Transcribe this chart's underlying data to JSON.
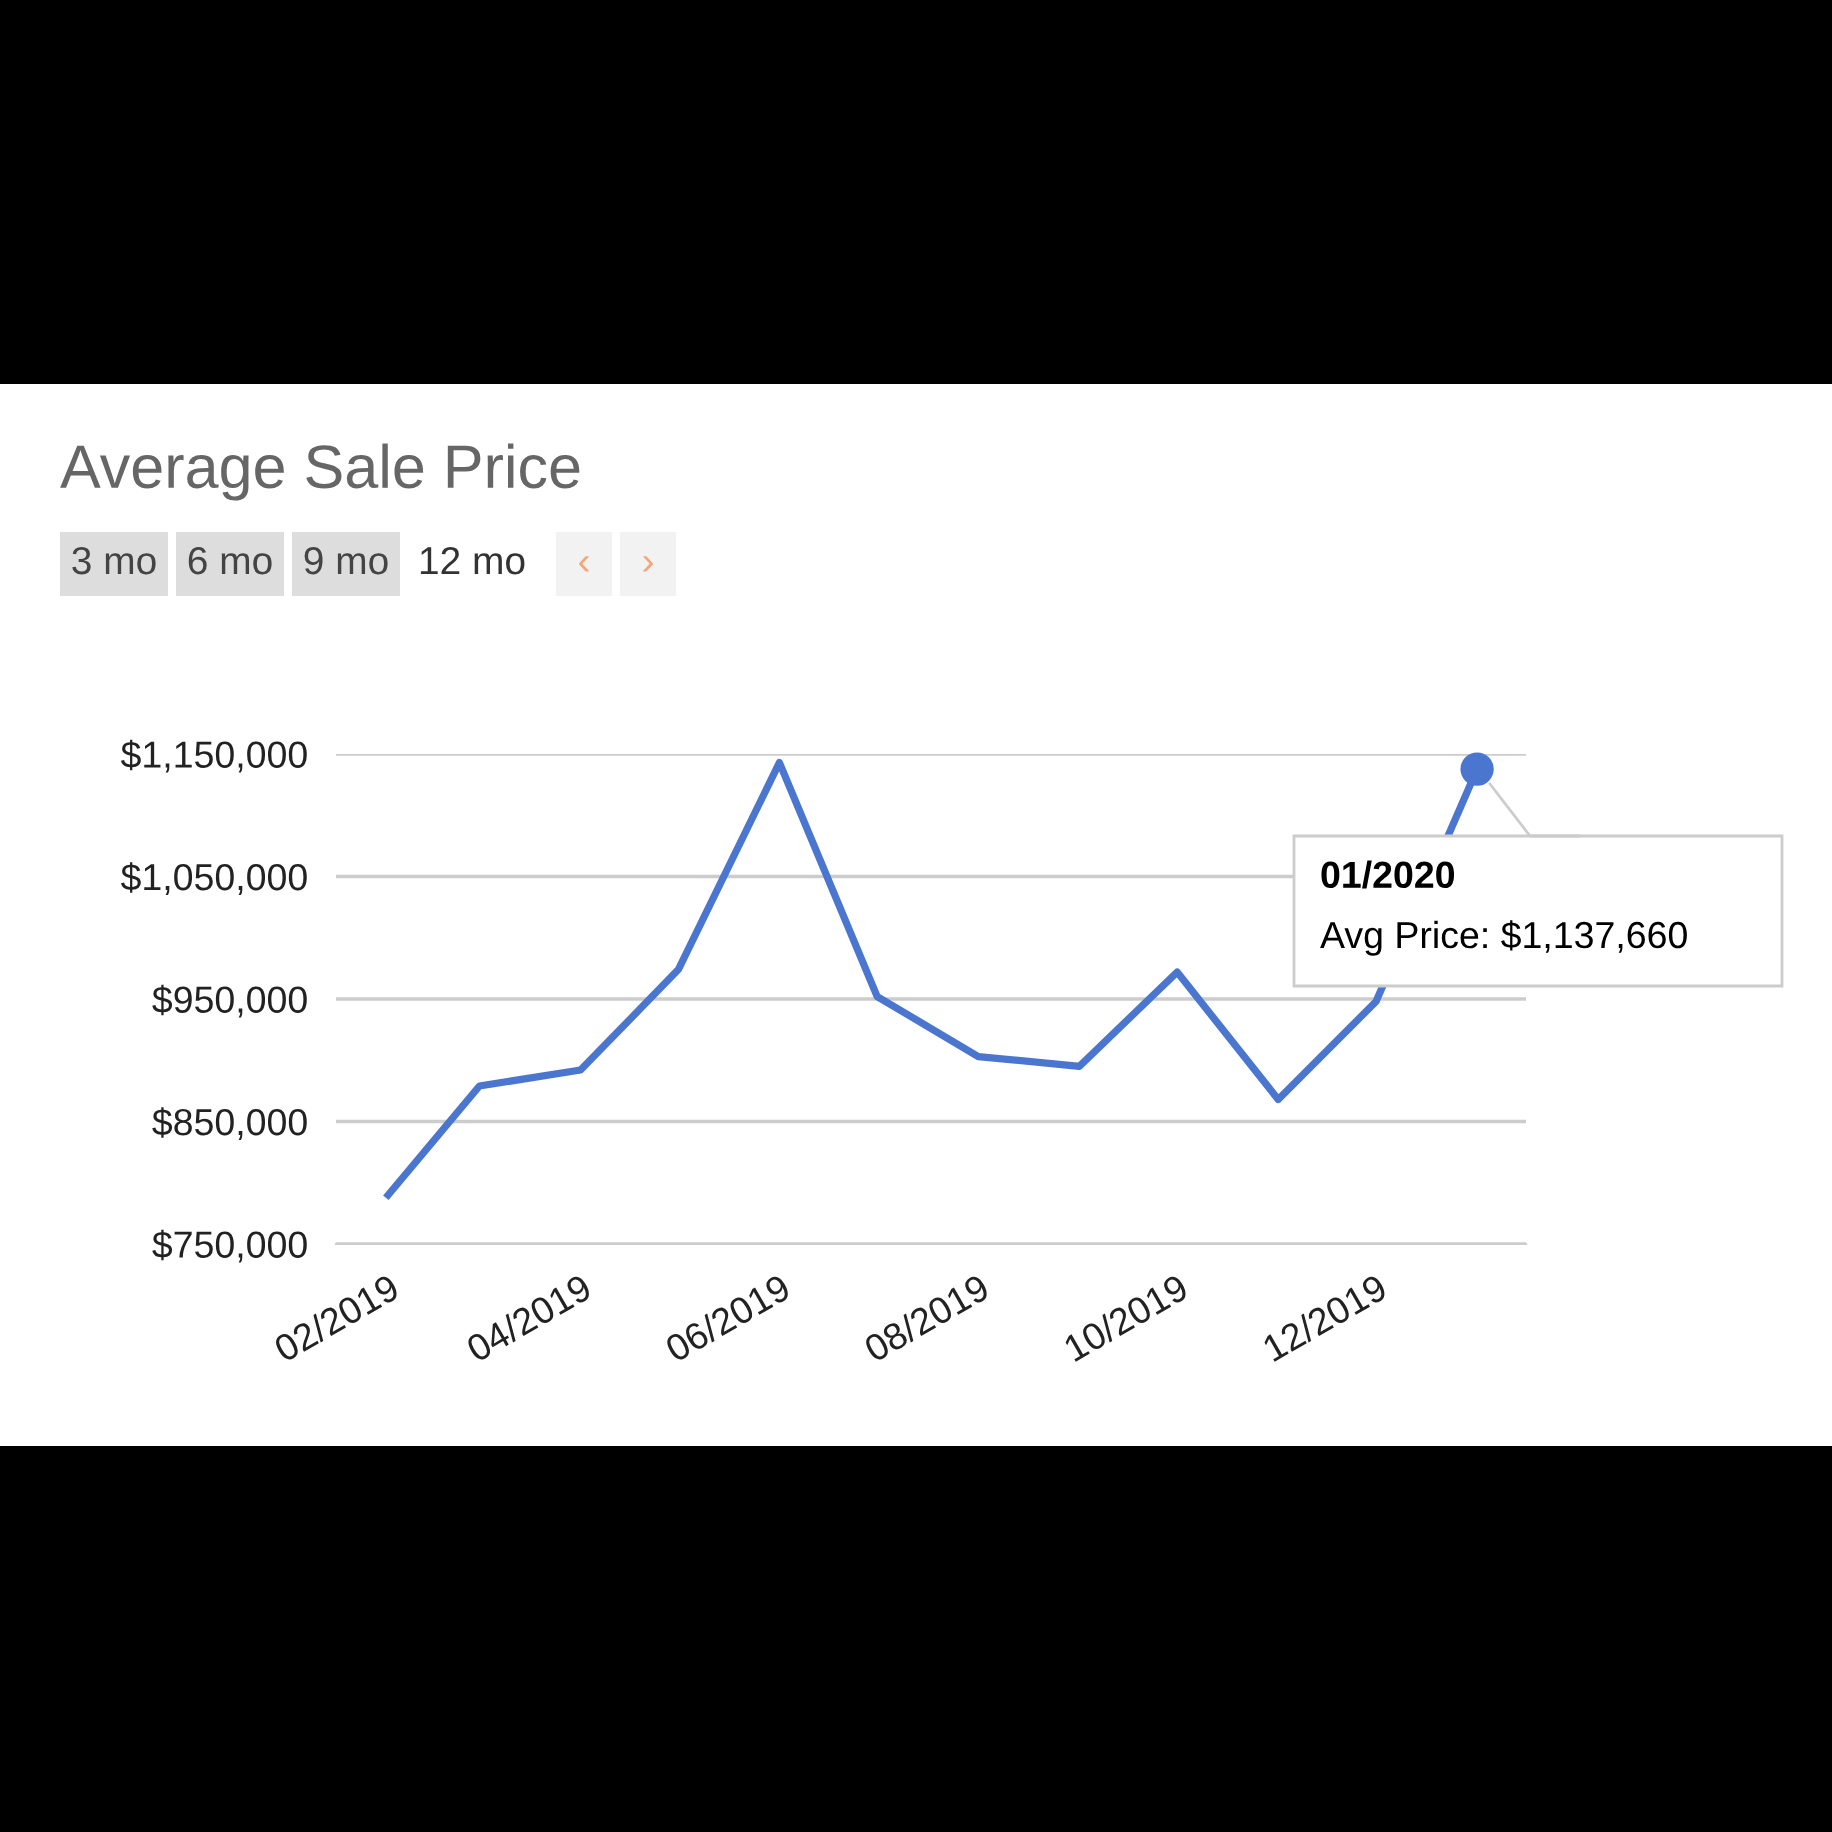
{
  "chart_data": {
    "type": "line",
    "title": "Average Sale Price",
    "x": [
      "2019-02",
      "2019-03",
      "2019-04",
      "2019-05",
      "2019-06",
      "2019-07",
      "2019-08",
      "2019-09",
      "2019-10",
      "2019-11",
      "2019-12",
      "2020-01"
    ],
    "series": [
      {
        "color": "#4a76d0",
        "values": [
          790000,
          879000,
          892000,
          974000,
          1143000,
          952000,
          903000,
          895000,
          972000,
          868000,
          948000,
          1137660
        ]
      }
    ],
    "xlim": [
      "2019-01-16",
      "2020-01-16"
    ],
    "xticks": [
      {
        "value": "2019-02",
        "label": "02/2019"
      },
      {
        "value": "2019-04",
        "label": "04/2019"
      },
      {
        "value": "2019-06",
        "label": "06/2019"
      },
      {
        "value": "2019-08",
        "label": "08/2019"
      },
      {
        "value": "2019-10",
        "label": "10/2019"
      },
      {
        "value": "2019-12",
        "label": "12/2019"
      }
    ],
    "ylim": [
      750000,
      1150000
    ],
    "yticks": [
      {
        "value": 750000,
        "label": "$750,000"
      },
      {
        "value": 850000,
        "label": "$850,000"
      },
      {
        "value": 950000,
        "label": "$950,000"
      },
      {
        "value": 1050000,
        "label": "$1,050,000"
      },
      {
        "value": 1150000,
        "label": "$1,150,000"
      }
    ],
    "grid": "y",
    "legend": false,
    "marker": "none",
    "line_style": "solid",
    "annotations": [
      "3 mo",
      "6 mo",
      "9 mo",
      "12 mo",
      "‹",
      "›",
      {
        "text": "01/2020\nAvg Price: $1,137,660",
        "x": "2020-01",
        "y": 1137660
      }
    ]
  }
}
